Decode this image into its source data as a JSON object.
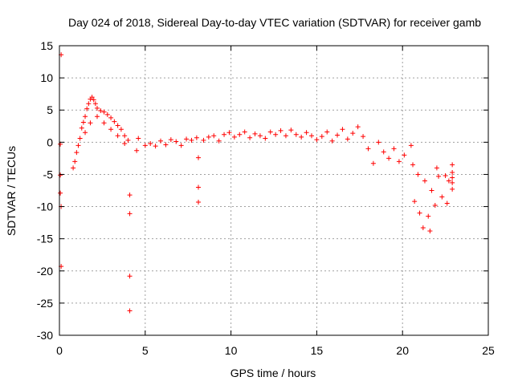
{
  "chart_data": {
    "type": "scatter",
    "title": "Day 024 of 2018, Sidereal Day-to-day VTEC variation (SDTVAR) for receiver gamb",
    "xlabel": "GPS time / hours",
    "ylabel": "SDTVAR / TECUs",
    "xlim": [
      0,
      25
    ],
    "ylim": [
      -30,
      15
    ],
    "xticks": [
      0,
      5,
      10,
      15,
      20,
      25
    ],
    "yticks": [
      15,
      10,
      5,
      0,
      -5,
      -10,
      -15,
      -20,
      -25,
      -30
    ],
    "grid": true,
    "marker": "+",
    "color": "#ff0000",
    "points": [
      [
        0.1,
        13.6
      ],
      [
        0.05,
        -0.3
      ],
      [
        0.05,
        -5.1
      ],
      [
        0.05,
        -7.9
      ],
      [
        0.1,
        -10.0
      ],
      [
        0.1,
        -19.3
      ],
      [
        0.8,
        -4.0
      ],
      [
        0.9,
        -3.0
      ],
      [
        1.0,
        -1.6
      ],
      [
        1.1,
        -0.5
      ],
      [
        1.2,
        0.6
      ],
      [
        1.3,
        2.2
      ],
      [
        1.4,
        3.1
      ],
      [
        1.5,
        4.0
      ],
      [
        1.6,
        5.2
      ],
      [
        1.7,
        6.0
      ],
      [
        1.8,
        6.7
      ],
      [
        1.9,
        7.0
      ],
      [
        2.0,
        6.6
      ],
      [
        2.1,
        6.0
      ],
      [
        2.2,
        5.3
      ],
      [
        2.4,
        4.9
      ],
      [
        2.6,
        4.7
      ],
      [
        2.8,
        4.3
      ],
      [
        3.0,
        3.8
      ],
      [
        3.2,
        3.2
      ],
      [
        3.4,
        2.6
      ],
      [
        3.6,
        2.0
      ],
      [
        3.8,
        1.0
      ],
      [
        4.0,
        0.3
      ],
      [
        1.5,
        1.5
      ],
      [
        1.8,
        3.0
      ],
      [
        2.2,
        4.0
      ],
      [
        2.6,
        3.0
      ],
      [
        3.0,
        2.0
      ],
      [
        3.4,
        1.0
      ],
      [
        3.8,
        -0.2
      ],
      [
        4.1,
        -8.2
      ],
      [
        4.1,
        -11.1
      ],
      [
        4.1,
        -20.8
      ],
      [
        4.1,
        -26.2
      ],
      [
        4.5,
        -1.3
      ],
      [
        4.6,
        0.6
      ],
      [
        5.0,
        -0.5
      ],
      [
        5.3,
        -0.2
      ],
      [
        5.6,
        -0.6
      ],
      [
        5.9,
        0.2
      ],
      [
        6.2,
        -0.4
      ],
      [
        6.5,
        0.4
      ],
      [
        6.8,
        0.1
      ],
      [
        7.1,
        -0.5
      ],
      [
        7.4,
        0.5
      ],
      [
        7.7,
        0.3
      ],
      [
        8.0,
        0.7
      ],
      [
        8.1,
        -2.4
      ],
      [
        8.1,
        -7.0
      ],
      [
        8.1,
        -9.3
      ],
      [
        8.4,
        0.3
      ],
      [
        8.7,
        0.8
      ],
      [
        9.0,
        1.0
      ],
      [
        9.3,
        0.2
      ],
      [
        9.6,
        1.2
      ],
      [
        9.9,
        1.5
      ],
      [
        10.2,
        0.8
      ],
      [
        10.5,
        1.2
      ],
      [
        10.8,
        1.6
      ],
      [
        11.1,
        0.7
      ],
      [
        11.4,
        1.3
      ],
      [
        11.7,
        1.0
      ],
      [
        12.0,
        0.6
      ],
      [
        12.3,
        1.6
      ],
      [
        12.6,
        1.2
      ],
      [
        12.9,
        1.8
      ],
      [
        13.2,
        1.0
      ],
      [
        13.5,
        1.9
      ],
      [
        13.8,
        1.2
      ],
      [
        14.1,
        0.8
      ],
      [
        14.4,
        1.5
      ],
      [
        14.7,
        1.0
      ],
      [
        15.0,
        0.4
      ],
      [
        15.3,
        0.9
      ],
      [
        15.6,
        1.6
      ],
      [
        15.9,
        0.2
      ],
      [
        16.2,
        1.1
      ],
      [
        16.5,
        2.0
      ],
      [
        16.8,
        0.5
      ],
      [
        17.1,
        1.4
      ],
      [
        17.4,
        2.4
      ],
      [
        17.7,
        0.9
      ],
      [
        18.0,
        -1.0
      ],
      [
        18.3,
        -3.3
      ],
      [
        18.6,
        0.0
      ],
      [
        18.9,
        -1.5
      ],
      [
        19.2,
        -2.5
      ],
      [
        19.5,
        -1.0
      ],
      [
        19.8,
        -3.0
      ],
      [
        20.1,
        -2.0
      ],
      [
        20.5,
        -0.5
      ],
      [
        20.6,
        -3.5
      ],
      [
        20.7,
        -9.2
      ],
      [
        20.9,
        -5.0
      ],
      [
        21.0,
        -11.0
      ],
      [
        21.2,
        -13.3
      ],
      [
        21.3,
        -6.0
      ],
      [
        21.5,
        -11.5
      ],
      [
        21.6,
        -13.8
      ],
      [
        21.7,
        -7.5
      ],
      [
        21.9,
        -9.8
      ],
      [
        22.0,
        -4.0
      ],
      [
        22.1,
        -5.3
      ],
      [
        22.3,
        -8.5
      ],
      [
        22.5,
        -5.2
      ],
      [
        22.6,
        -9.5
      ],
      [
        22.7,
        -6.0
      ],
      [
        22.9,
        -3.5
      ],
      [
        22.9,
        -4.7
      ],
      [
        22.9,
        -5.5
      ],
      [
        22.9,
        -6.3
      ],
      [
        22.9,
        -7.3
      ]
    ]
  }
}
